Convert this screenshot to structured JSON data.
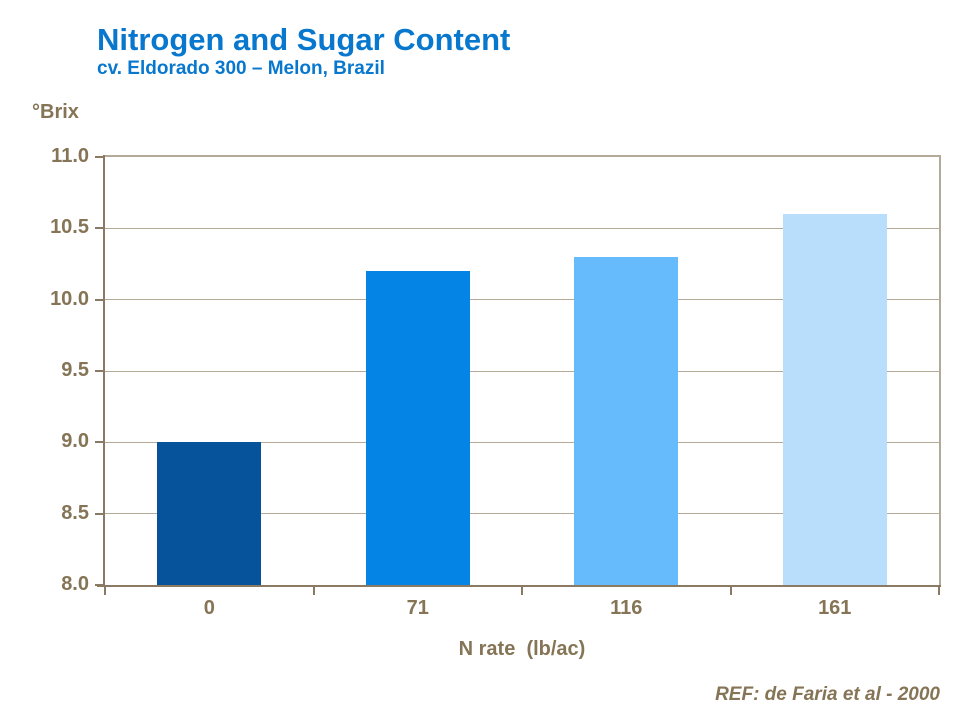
{
  "page": {
    "reference": "REF: de Faria et al - 2000"
  },
  "chart_data": {
    "type": "bar",
    "title": "Nitrogen and Sugar Content",
    "subtitle": "cv. Eldorado 300 – Melon, Brazil",
    "categories": [
      "0",
      "71",
      "116",
      "161"
    ],
    "values": [
      9.0,
      10.2,
      10.3,
      10.6
    ],
    "bar_colors": [
      "#07539B",
      "#0484E4",
      "#66BBFC",
      "#B8DEFC"
    ],
    "xlabel": "N rate  (lb/ac)",
    "ylabel": "°Brix",
    "ylim": [
      8.0,
      11.0
    ],
    "ytick_step": 0.5,
    "ytick_format_decimals": 1,
    "grid": true,
    "legend": false,
    "bar_width_fraction": 0.5,
    "title_color": "#0878CE",
    "axis_text_color": "#857455",
    "grid_color": "#B5A997",
    "axis_line_color": "#8A7A63",
    "background_color": "#FFFFFF"
  }
}
